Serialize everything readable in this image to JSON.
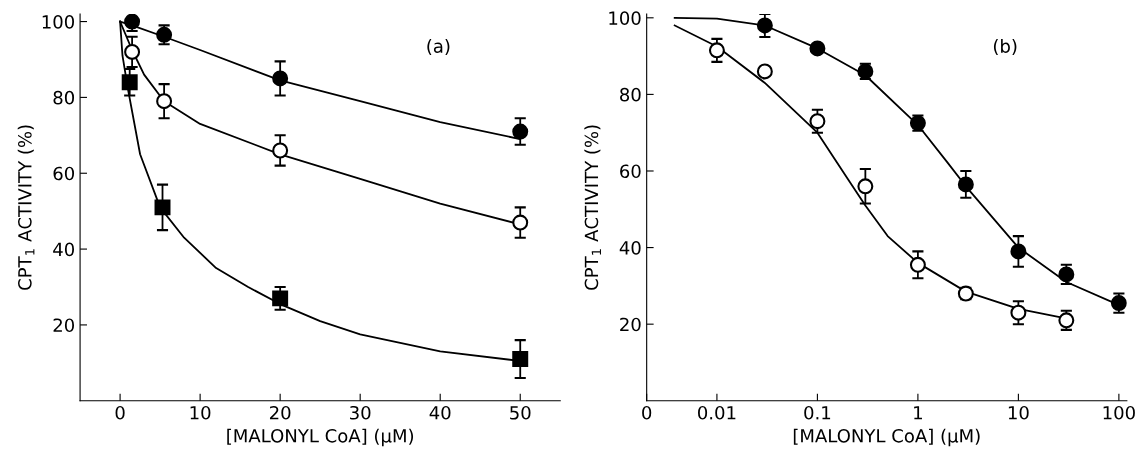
{
  "chart_data": [
    {
      "type": "scatter",
      "xlabel": "[MALONYL CoA] (μM)",
      "ylabel": "CPT$_{1}$ ACTIVITY (%)",
      "annotations": [
        "(a)"
      ],
      "xlim": [
        -5,
        55
      ],
      "xticks": [
        0,
        10,
        20,
        30,
        40,
        50
      ],
      "ylim": [
        0,
        102
      ],
      "yticks": [
        20,
        40,
        60,
        80,
        100
      ],
      "grid": false,
      "legend": false,
      "series": [
        {
          "type": "scatter",
          "marker": "circle",
          "color": "#000000",
          "x": [
            1.5,
            5.5,
            20,
            50
          ],
          "values": [
            100,
            96.5,
            85,
            71
          ],
          "errors": [
            2.5,
            2.5,
            4.5,
            3.5
          ]
        },
        {
          "type": "scatter",
          "marker": "circle",
          "color": "#ffffff",
          "x": [
            1.5,
            5.5,
            20,
            50
          ],
          "values": [
            92,
            79,
            66,
            47
          ],
          "errors": [
            4,
            4.5,
            4,
            4
          ]
        },
        {
          "type": "scatter",
          "marker": "square",
          "color": "#000000",
          "x": [
            1.2,
            5.3,
            20,
            50
          ],
          "values": [
            84,
            51,
            27,
            11
          ],
          "errors": [
            3.5,
            6,
            3,
            5
          ]
        },
        {
          "type": "line",
          "marker": "none",
          "color": "#000000",
          "x": [
            0,
            1.5,
            5.5,
            10,
            20,
            30,
            40,
            50
          ],
          "values": [
            100,
            99,
            96,
            92.5,
            84.5,
            79,
            73.5,
            69
          ]
        },
        {
          "type": "line",
          "marker": "none",
          "color": "#000000",
          "x": [
            0,
            1.5,
            3,
            5.5,
            10,
            20,
            30,
            40,
            50
          ],
          "values": [
            100,
            92.5,
            86,
            79,
            73,
            65,
            58.5,
            52,
            46.5
          ]
        },
        {
          "type": "line",
          "marker": "none",
          "color": "#000000",
          "x": [
            0,
            0.3,
            1,
            2.5,
            5,
            8,
            12,
            16,
            20,
            25,
            30,
            40,
            50
          ],
          "values": [
            100,
            91,
            82,
            65,
            51,
            43,
            35,
            30,
            25.5,
            21,
            17.5,
            13,
            10.5
          ]
        }
      ]
    },
    {
      "type": "scatter",
      "xlabel": "[MALONYL CoA] (μM)",
      "ylabel": "CPT$_{1}$ ACTIVITY (%)",
      "annotations": [
        "(b)"
      ],
      "log": "x",
      "xlim": [
        0.002,
        120
      ],
      "xticks": [
        {
          "value": 0.002,
          "label": "0"
        },
        {
          "value": 0.01,
          "label": "0.01"
        },
        {
          "value": 0.1,
          "label": "0.1"
        },
        1,
        10,
        100
      ],
      "ylim": [
        0,
        101
      ],
      "yticks": [
        20,
        40,
        60,
        80,
        100
      ],
      "grid": false,
      "legend": false,
      "series": [
        {
          "type": "scatter",
          "marker": "circle",
          "color": "#000000",
          "x": [
            0.03,
            0.1,
            0.3,
            1,
            3,
            10,
            30,
            100
          ],
          "values": [
            98,
            92,
            86,
            72.5,
            56.5,
            39,
            33,
            25.5
          ],
          "errors": [
            3,
            null,
            2,
            2,
            3.5,
            4,
            2.5,
            2.5
          ]
        },
        {
          "type": "scatter",
          "marker": "circle",
          "color": "#ffffff",
          "x": [
            0.01,
            0.03,
            0.1,
            0.3,
            1,
            3,
            10,
            30
          ],
          "values": [
            91.5,
            86,
            73,
            56,
            35.5,
            28,
            23,
            21
          ],
          "errors": [
            3,
            null,
            3,
            4.5,
            3.5,
            1.5,
            3,
            2.5
          ]
        },
        {
          "type": "line",
          "marker": "none",
          "color": "#000000",
          "x": [
            0.0038,
            0.01,
            0.03,
            0.1,
            0.3,
            1,
            2,
            3,
            10,
            30,
            100
          ],
          "values": [
            100,
            99.8,
            98,
            92,
            85,
            72,
            62,
            56,
            40,
            31,
            25
          ]
        },
        {
          "type": "line",
          "marker": "none",
          "color": "#000000",
          "x": [
            0.0038,
            0.01,
            0.03,
            0.1,
            0.2,
            0.3,
            0.5,
            1,
            3,
            10,
            30
          ],
          "values": [
            98,
            92.5,
            83,
            70,
            58,
            51,
            43,
            36,
            28.5,
            24,
            21.5
          ]
        }
      ]
    }
  ]
}
